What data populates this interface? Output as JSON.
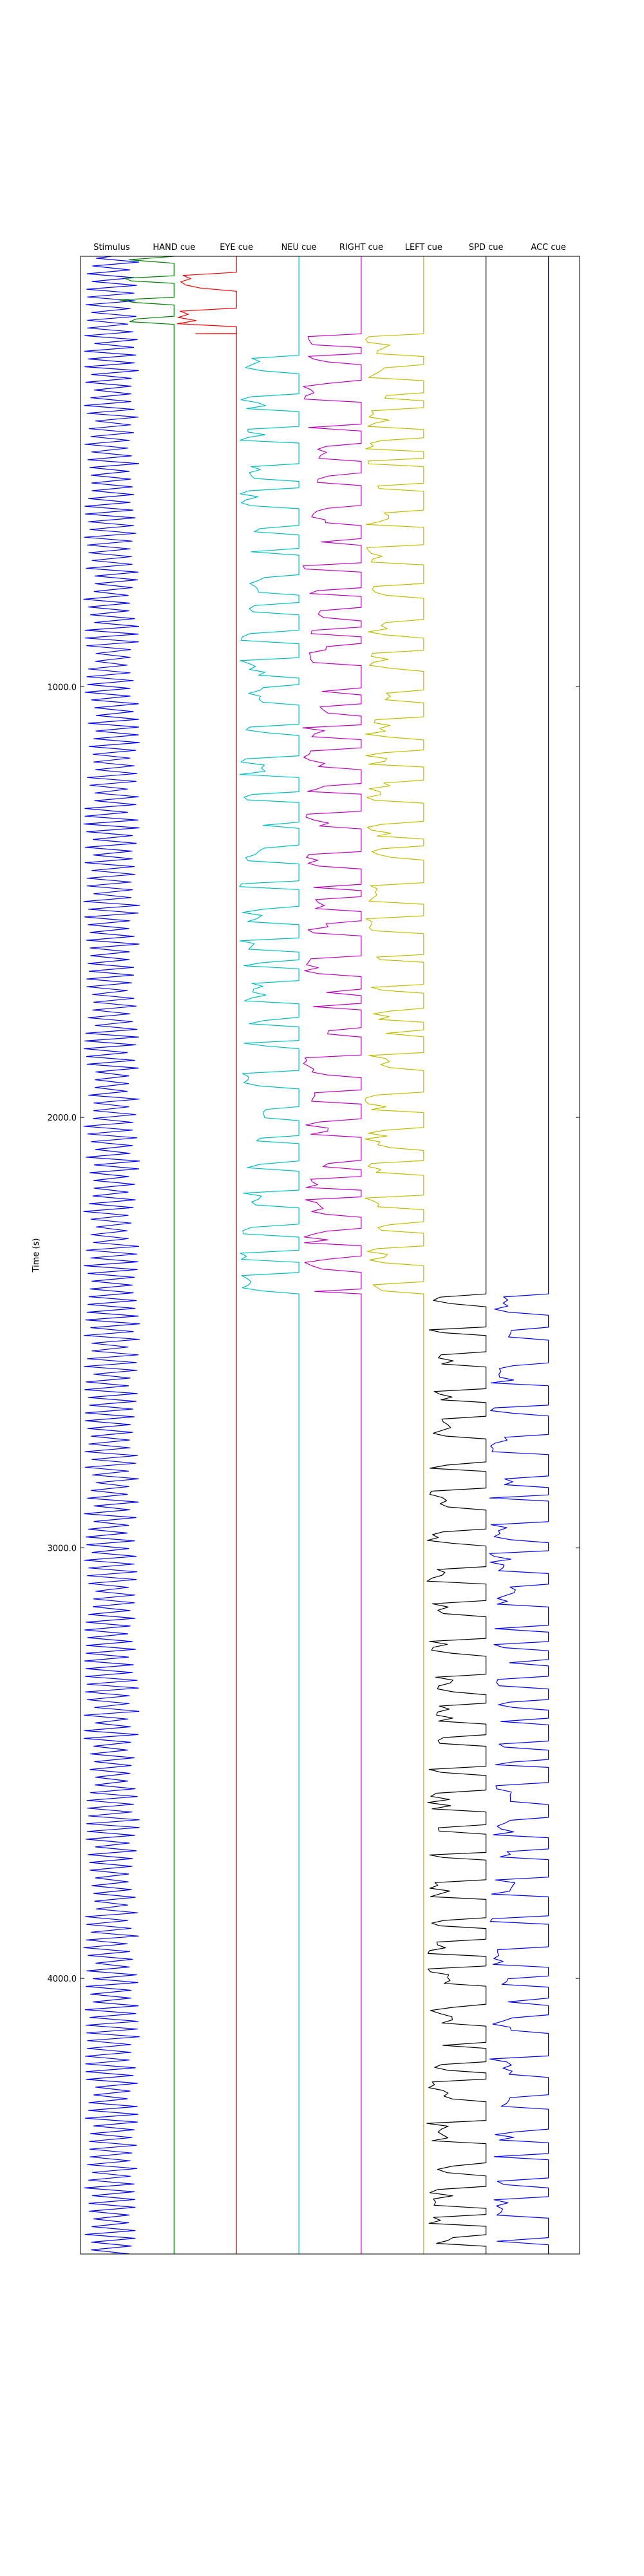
{
  "chart_data": {
    "type": "line",
    "layout": "vertical-traces",
    "ylabel": "Time (s)",
    "y_range": [
      0,
      4640
    ],
    "y_inverted": true,
    "y_ticks": [
      {
        "value": 1000,
        "label": "1000.0"
      },
      {
        "value": 2000,
        "label": "2000.0"
      },
      {
        "value": 3000,
        "label": "3000.0"
      },
      {
        "value": 4000,
        "label": "4000.0"
      }
    ],
    "series": [
      {
        "name": "Stimulus",
        "color": "#0000ff",
        "pattern": "oscillation",
        "active": [
          [
            0,
            4640
          ]
        ],
        "oscillation_period": 18,
        "amplitude": 0.45
      },
      {
        "name": "HAND cue",
        "color": "#008000",
        "pattern": "bursts",
        "active": [
          [
            0,
            180
          ]
        ]
      },
      {
        "name": "EYE cue",
        "color": "#ff0000",
        "pattern": "bursts",
        "active": [
          [
            0,
            180
          ]
        ]
      },
      {
        "name": "NEU cue",
        "color": "#00bfbf",
        "pattern": "bursts",
        "active": [
          [
            180,
            2410
          ]
        ]
      },
      {
        "name": "RIGHT cue",
        "color": "#bf00bf",
        "pattern": "bursts",
        "active": [
          [
            180,
            2410
          ]
        ]
      },
      {
        "name": "LEFT cue",
        "color": "#bfbf00",
        "pattern": "bursts",
        "active": [
          [
            180,
            2410
          ]
        ]
      },
      {
        "name": "SPD cue",
        "color": "#000000",
        "pattern": "bursts",
        "active": [
          [
            2410,
            4640
          ]
        ]
      },
      {
        "name": "ACC cue",
        "color": "#0000ff",
        "pattern": "bursts",
        "active": [
          [
            2410,
            4640
          ]
        ]
      }
    ]
  }
}
